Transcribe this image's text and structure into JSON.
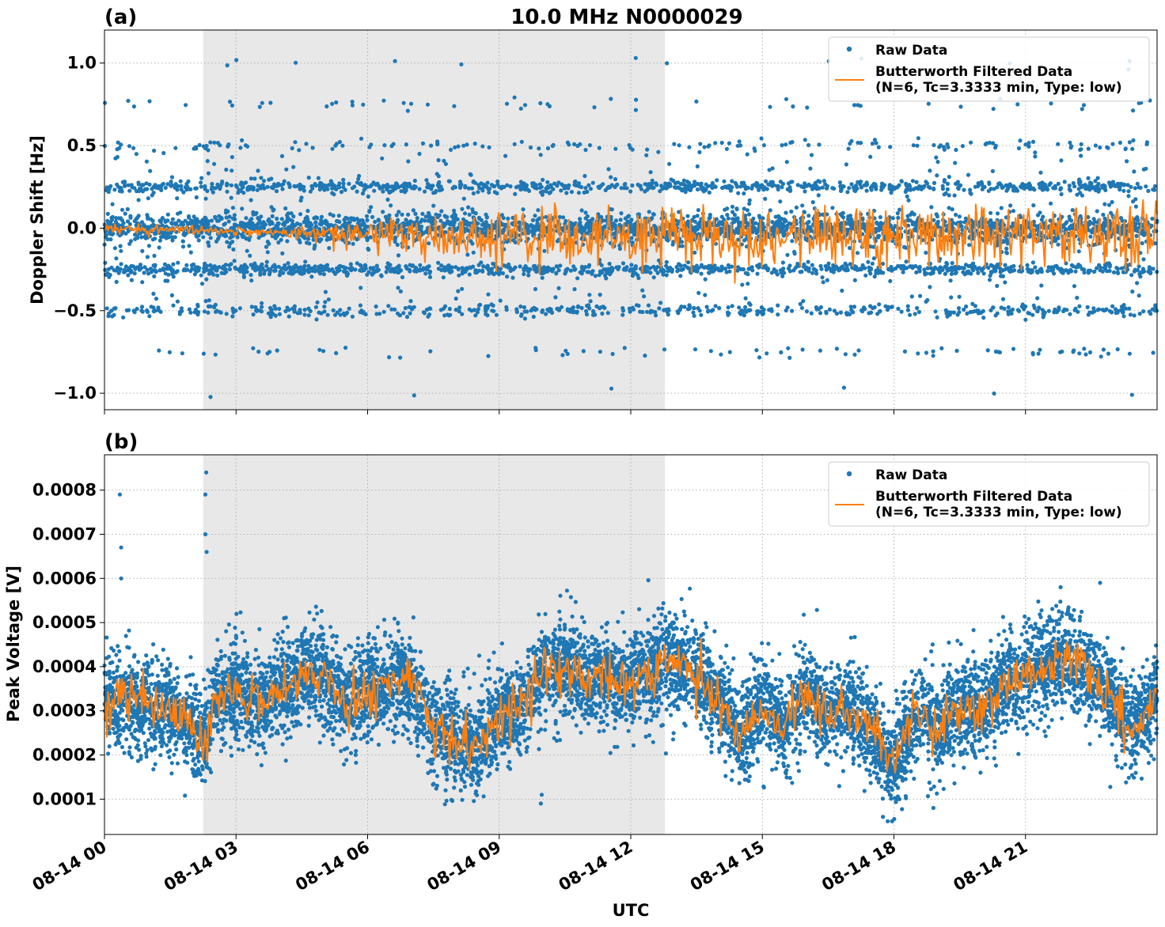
{
  "figure": {
    "title": "10.0 MHz N0000029",
    "xlabel": "UTC",
    "colors": {
      "raw": "#1f77b4",
      "filtered": "#ff7f0e",
      "shade": "#e8e8e8",
      "grid": "#b0b0b0"
    }
  },
  "chart_data": [
    {
      "type": "scatter",
      "panel_label": "(a)",
      "ylabel": "Doppler Shift [Hz]",
      "x_unit": "UTC hours on 08-14",
      "xlim": [
        0,
        24
      ],
      "ylim": [
        -1.1,
        1.2
      ],
      "yticks": [
        1.0,
        0.5,
        0.0,
        -0.5,
        -1.0
      ],
      "ytick_labels": [
        "1.0",
        "0.5",
        "0.0",
        "−0.5",
        "−1.0"
      ],
      "xticks": [
        0,
        3,
        6,
        9,
        12,
        15,
        18,
        21
      ],
      "xtick_labels": [
        "08-14 00",
        "08-14 03",
        "08-14 06",
        "08-14 09",
        "08-14 12",
        "08-14 15",
        "08-14 18",
        "08-14 21"
      ],
      "grid": true,
      "legend_position": "top-right",
      "shaded_interval_hours": [
        2.25,
        12.78
      ],
      "series": [
        {
          "name": "Raw Data",
          "kind": "points",
          "discrete_levels_hz": [
            -1.0,
            -0.75,
            -0.5,
            -0.25,
            0.0,
            0.25,
            0.5,
            0.75,
            1.0
          ],
          "typical_range": [
            -0.5,
            0.25
          ],
          "max": 1.1,
          "min": -1.0
        },
        {
          "name": "Butterworth Filtered Data\n(N=6, Tc=3.3333 min, Type: low)",
          "kind": "line",
          "x": [
            0,
            1,
            2,
            3,
            4,
            5,
            6,
            7,
            8,
            9,
            10,
            11,
            12,
            13,
            14,
            15,
            16,
            17,
            18,
            19,
            20,
            21,
            22,
            23,
            24
          ],
          "y": [
            0.0,
            -0.01,
            -0.01,
            -0.02,
            -0.03,
            -0.03,
            -0.04,
            -0.04,
            -0.05,
            -0.06,
            -0.05,
            -0.06,
            -0.06,
            -0.05,
            -0.05,
            -0.06,
            -0.05,
            -0.06,
            -0.04,
            -0.05,
            -0.05,
            -0.05,
            -0.04,
            -0.05,
            -0.06
          ]
        }
      ]
    },
    {
      "type": "scatter",
      "panel_label": "(b)",
      "ylabel": "Peak Voltage [V]",
      "x_unit": "UTC hours on 08-14",
      "xlim": [
        0,
        24
      ],
      "ylim": [
        2e-05,
        0.00088
      ],
      "yticks": [
        0.0008,
        0.0007,
        0.0006,
        0.0005,
        0.0004,
        0.0003,
        0.0002,
        0.0001
      ],
      "ytick_labels": [
        "0.0008",
        "0.0007",
        "0.0006",
        "0.0005",
        "0.0004",
        "0.0003",
        "0.0002",
        "0.0001"
      ],
      "xticks": [
        0,
        3,
        6,
        9,
        12,
        15,
        18,
        21
      ],
      "xtick_labels": [
        "08-14 00",
        "08-14 03",
        "08-14 06",
        "08-14 09",
        "08-14 12",
        "08-14 15",
        "08-14 18",
        "08-14 21"
      ],
      "grid": true,
      "legend_position": "top-right",
      "shaded_interval_hours": [
        2.25,
        12.78
      ],
      "series": [
        {
          "name": "Raw Data",
          "kind": "points",
          "max": 0.00084,
          "min": 6e-05
        },
        {
          "name": "Butterworth Filtered Data\n(N=6, Tc=3.3333 min, Type: low)",
          "kind": "line",
          "x": [
            0,
            0.5,
            1,
            1.5,
            2,
            2.25,
            2.5,
            3,
            3.5,
            4,
            4.5,
            5,
            5.5,
            6,
            6.5,
            7,
            7.5,
            8,
            8.5,
            9,
            9.5,
            10,
            10.5,
            11,
            11.5,
            12,
            12.5,
            13,
            13.5,
            14,
            14.5,
            15,
            15.5,
            16,
            16.5,
            17,
            17.5,
            18,
            18.5,
            19,
            19.5,
            20,
            20.5,
            21,
            21.5,
            22,
            22.5,
            23,
            23.5,
            24
          ],
          "y": [
            0.00031,
            0.00033,
            0.00031,
            0.0003,
            0.00027,
            0.00022,
            0.00032,
            0.00035,
            0.00031,
            0.00035,
            0.00038,
            0.00039,
            0.00032,
            0.00034,
            0.00036,
            0.00037,
            0.00026,
            0.00023,
            0.00021,
            0.00029,
            0.0003,
            0.00039,
            0.0004,
            0.00037,
            0.00038,
            0.00036,
            0.00039,
            0.00042,
            0.00038,
            0.00033,
            0.00023,
            0.00032,
            0.00026,
            0.00035,
            0.00029,
            0.0003,
            0.00025,
            0.00018,
            0.0003,
            0.00025,
            0.00031,
            0.0003,
            0.00036,
            0.00038,
            0.0004,
            0.00042,
            0.00038,
            0.00032,
            0.00025,
            0.00035
          ]
        }
      ]
    }
  ]
}
